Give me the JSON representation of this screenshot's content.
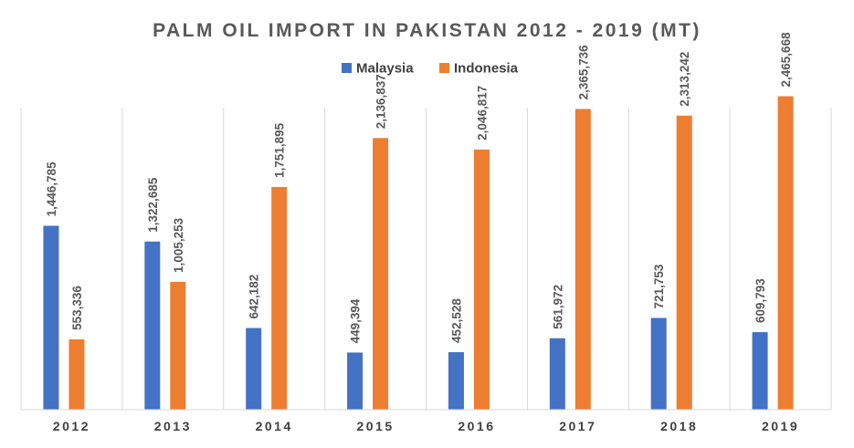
{
  "chart_data": {
    "type": "bar",
    "title": "PALM OIL IMPORT IN PAKISTAN 2012 - 2019 (MT)",
    "xlabel": "",
    "ylabel": "",
    "categories": [
      "2012",
      "2013",
      "2014",
      "2015",
      "2016",
      "2017",
      "2018",
      "2019"
    ],
    "series": [
      {
        "name": "Malaysia",
        "color": "#4472C4",
        "values": [
          1446785,
          1322685,
          642182,
          449394,
          452528,
          561972,
          721753,
          609793
        ],
        "labels": [
          "1,446,785",
          "1,322,685",
          "642,182",
          "449,394",
          "452,528",
          "561,972",
          "721,753",
          "609,793"
        ]
      },
      {
        "name": "Indonesia",
        "color": "#ED7D31",
        "values": [
          553336,
          1005253,
          1751895,
          2136837,
          2046817,
          2365736,
          2313242,
          2465668
        ],
        "labels": [
          "553,336",
          "1,005,253",
          "1,751,895",
          "2,136,837",
          "2,046,817",
          "2,365,736",
          "2,313,242",
          "2,465,668"
        ]
      }
    ],
    "ylim": [
      0,
      2950000
    ],
    "grid": false,
    "category_dividers": true,
    "legend_position": "top-center",
    "data_labels": true,
    "data_label_rotation": "vertical"
  }
}
